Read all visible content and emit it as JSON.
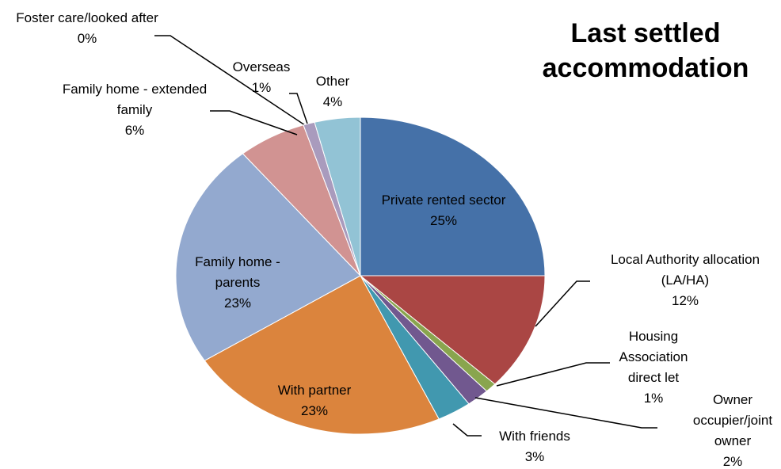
{
  "chart_data": {
    "type": "pie",
    "title": "Last settled accommodation",
    "categories": [
      "Private rented sector",
      "Local Authority allocation (LA/HA)",
      "Housing Association direct let",
      "Owner occupier/joint owner",
      "With friends",
      "With partner",
      "Family home - parents",
      "Family home - extended family",
      "Foster care/looked after",
      "Overseas",
      "Other"
    ],
    "values": [
      25,
      12,
      1,
      2,
      3,
      23,
      23,
      6,
      0,
      1,
      4
    ],
    "value_labels": [
      "25%",
      "12%",
      "1%",
      "2%",
      "3%",
      "23%",
      "23%",
      "6%",
      "0%",
      "1%",
      "4%"
    ],
    "colors": [
      "#4571a8",
      "#aa4644",
      "#89a54e",
      "#71588f",
      "#4198af",
      "#db843d",
      "#93a9cf",
      "#d19392",
      "#b9cd96",
      "#a99bbd",
      "#92c3d5"
    ]
  }
}
